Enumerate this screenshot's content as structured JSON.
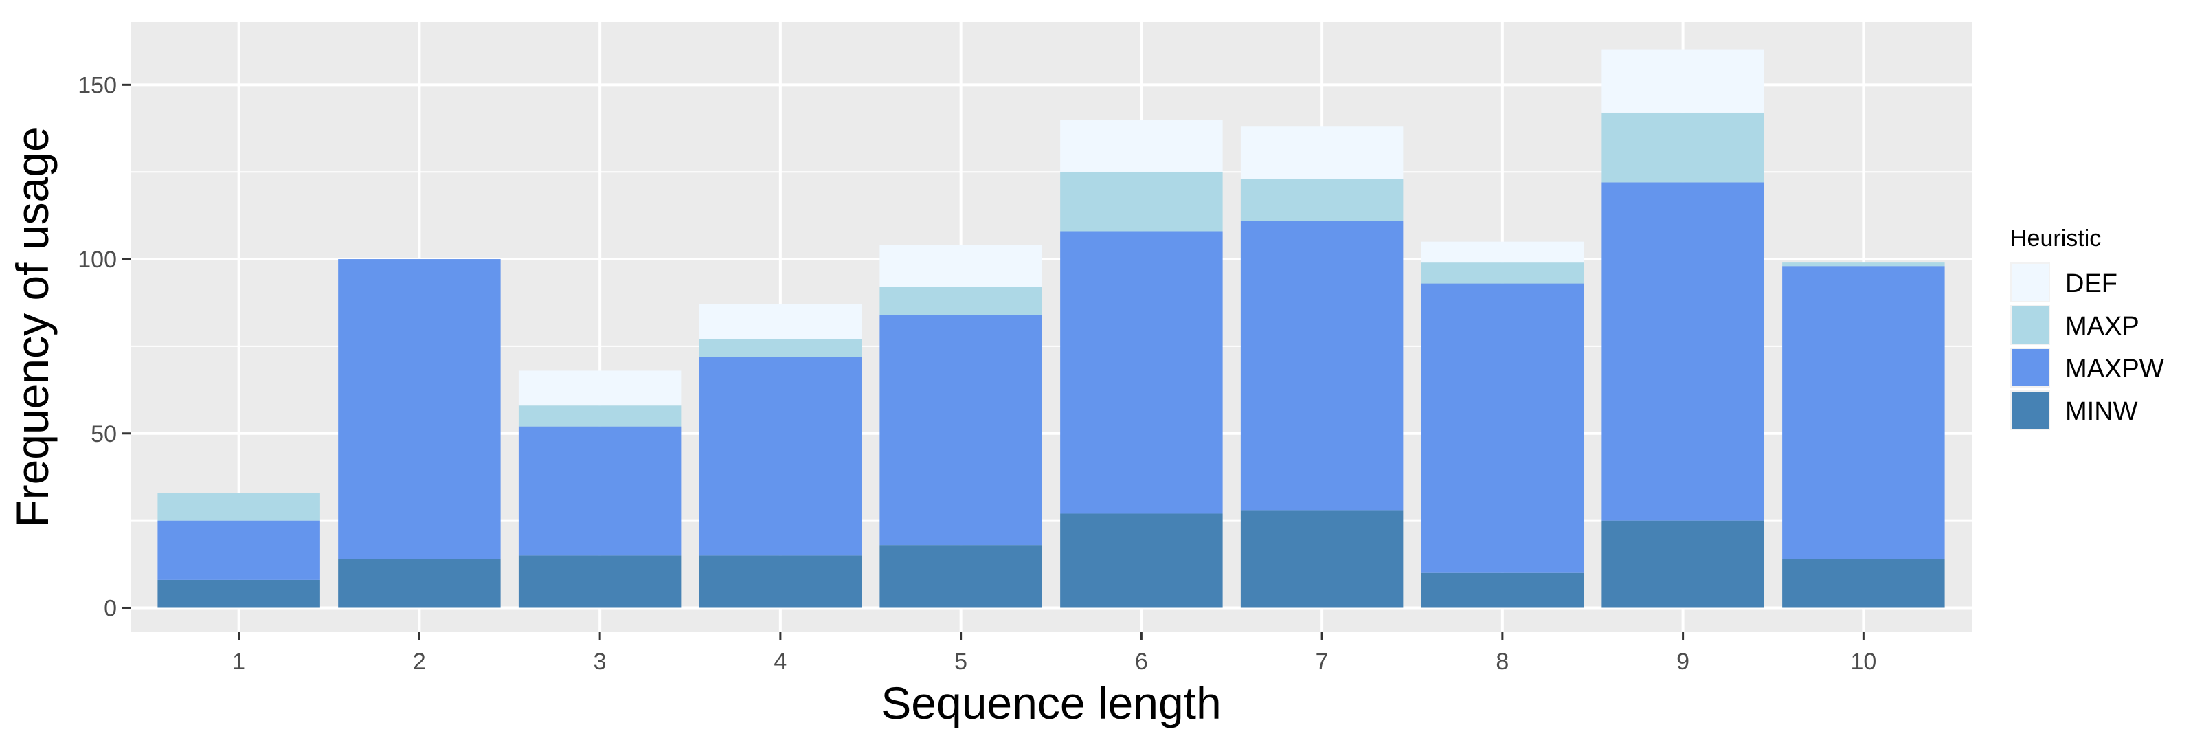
{
  "chart_data": {
    "type": "bar",
    "stacked": true,
    "categories": [
      "1",
      "2",
      "3",
      "4",
      "5",
      "6",
      "7",
      "8",
      "9",
      "10"
    ],
    "series": [
      {
        "name": "MINW",
        "color": "#4682B4",
        "values": [
          8,
          14,
          15,
          15,
          18,
          27,
          28,
          10,
          25,
          14
        ]
      },
      {
        "name": "MAXPW",
        "color": "#6495ED",
        "values": [
          17,
          86,
          37,
          57,
          66,
          81,
          83,
          83,
          97,
          84
        ]
      },
      {
        "name": "MAXP",
        "color": "#ADD8E6",
        "values": [
          8,
          0,
          6,
          5,
          8,
          17,
          12,
          6,
          20,
          1
        ]
      },
      {
        "name": "DEF",
        "color": "#F0F8FF",
        "values": [
          0,
          0,
          10,
          10,
          12,
          15,
          15,
          6,
          18,
          0
        ]
      }
    ],
    "legend_order": [
      "DEF",
      "MAXP",
      "MAXPW",
      "MINW"
    ],
    "title": "",
    "xlabel": "Sequence length",
    "ylabel": "Frequency of usage",
    "yticks": [
      0,
      50,
      100,
      150
    ],
    "ylim": [
      -7,
      168
    ],
    "legend_title": "Heuristic",
    "legend_position": "right",
    "grid": true,
    "panel_color": "#EBEBEB",
    "grid_color": "#FFFFFF"
  }
}
